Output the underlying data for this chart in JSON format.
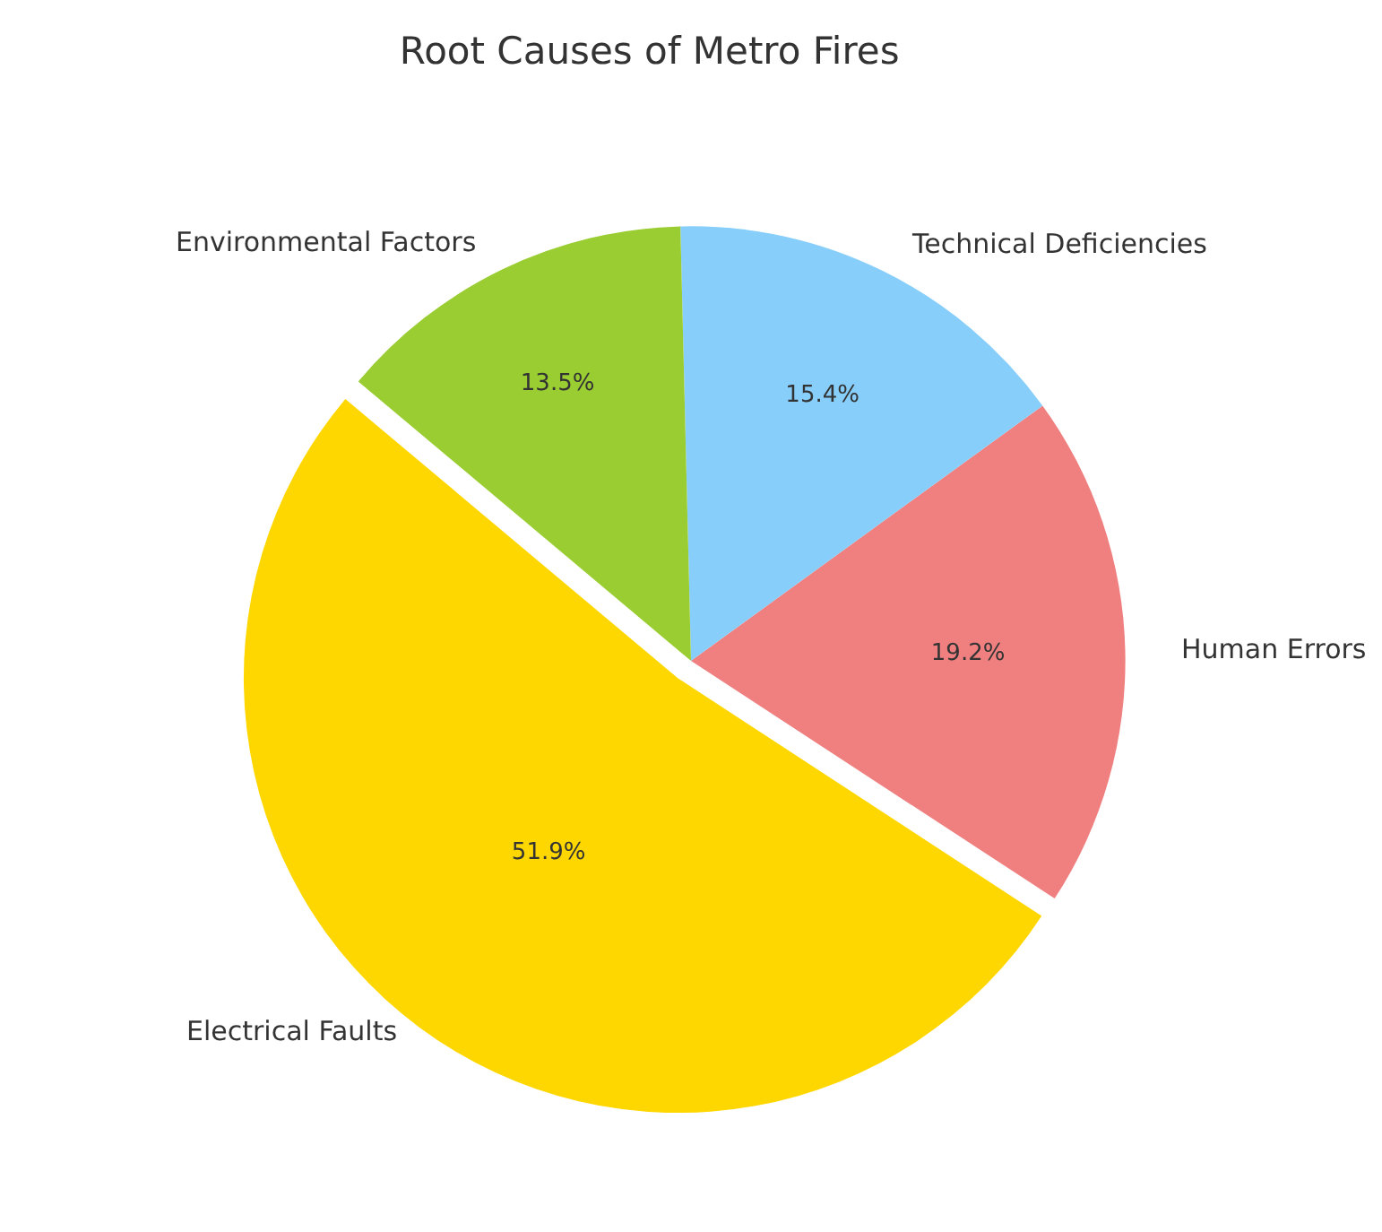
{
  "chart_data": {
    "type": "pie",
    "title": "Root Causes of Metro Fires",
    "categories": [
      "Electrical Faults",
      "Human Errors",
      "Technical Deficiencies",
      "Environmental Factors"
    ],
    "values": [
      51.9,
      19.2,
      15.4,
      13.5
    ],
    "colors": [
      "#ffd700",
      "#f08080",
      "#87cefa",
      "#9acd32"
    ],
    "value_labels": [
      "51.9%",
      "19.2%",
      "15.4%",
      "13.5%"
    ],
    "legend": false
  }
}
